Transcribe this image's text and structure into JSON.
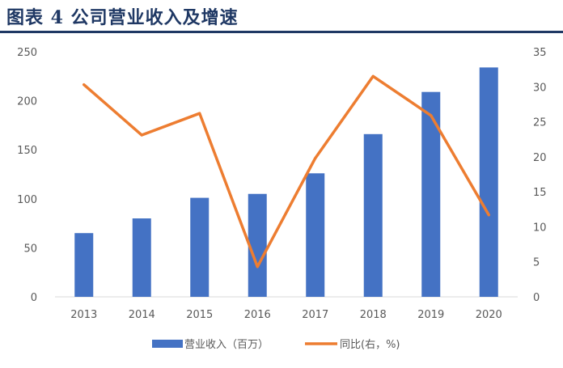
{
  "figure": {
    "title": "图表 4   公司营业收入及增速"
  },
  "chart_data": {
    "type": "bar",
    "categories": [
      "2013",
      "2014",
      "2015",
      "2016",
      "2017",
      "2018",
      "2019",
      "2020"
    ],
    "series": [
      {
        "name": "营业收入（百万）",
        "type": "bar",
        "axis": "left",
        "color": "#4472c4",
        "values": [
          65,
          80,
          101,
          105,
          126,
          166,
          209,
          234
        ]
      },
      {
        "name": "同比(右，%)",
        "type": "line",
        "axis": "right",
        "color": "#ed7d31",
        "values": [
          30.3,
          23.1,
          26.2,
          4.3,
          19.8,
          31.5,
          25.9,
          11.7
        ]
      }
    ],
    "y_left": {
      "ylim": [
        0,
        250
      ],
      "ticks": [
        "0",
        "50",
        "100",
        "150",
        "200",
        "250"
      ]
    },
    "y_right": {
      "ylim": [
        0,
        35
      ],
      "ticks": [
        "0",
        "5",
        "10",
        "15",
        "20",
        "25",
        "30",
        "35"
      ]
    },
    "grid": false,
    "legend_position": "bottom"
  }
}
